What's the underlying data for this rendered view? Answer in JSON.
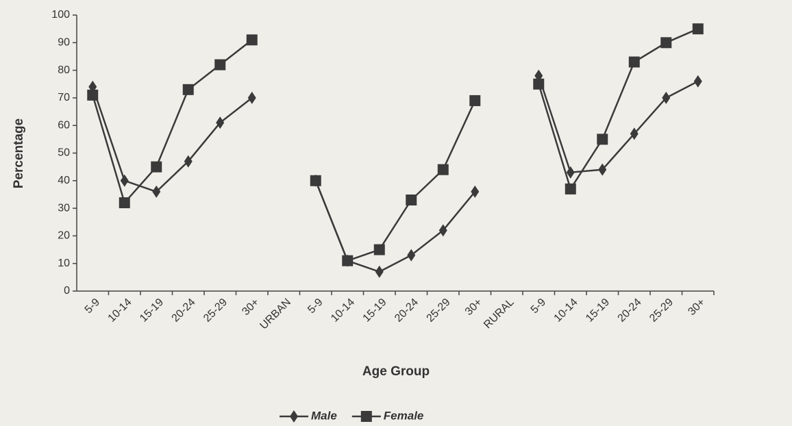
{
  "chart_data": {
    "type": "line",
    "xlabel": "Age Group",
    "ylabel": "Percentage",
    "categories": [
      "5-9",
      "10-14",
      "15-19",
      "20-24",
      "25-29",
      "30+",
      "URBAN",
      "5-9",
      "10-14",
      "15-19",
      "20-24",
      "25-29",
      "30+",
      "RURAL",
      "5-9",
      "10-14",
      "15-19",
      "20-24",
      "25-29",
      "30+"
    ],
    "series": [
      {
        "name": "Male",
        "color": "#3a3a3a",
        "marker": "diamond",
        "values": [
          74,
          40,
          36,
          47,
          61,
          70,
          null,
          40,
          11,
          7,
          13,
          22,
          36,
          null,
          78,
          43,
          44,
          57,
          70,
          76
        ]
      },
      {
        "name": "Female",
        "color": "#3a3a3a",
        "marker": "square",
        "values": [
          71,
          32,
          45,
          73,
          82,
          91,
          null,
          40,
          11,
          15,
          33,
          44,
          69,
          null,
          75,
          37,
          55,
          83,
          90,
          95
        ]
      }
    ],
    "ylim": [
      0,
      100
    ],
    "yticks": [
      0,
      10,
      20,
      30,
      40,
      50,
      60,
      70,
      80,
      90,
      100
    ],
    "grid": false,
    "legend": "bottom"
  }
}
